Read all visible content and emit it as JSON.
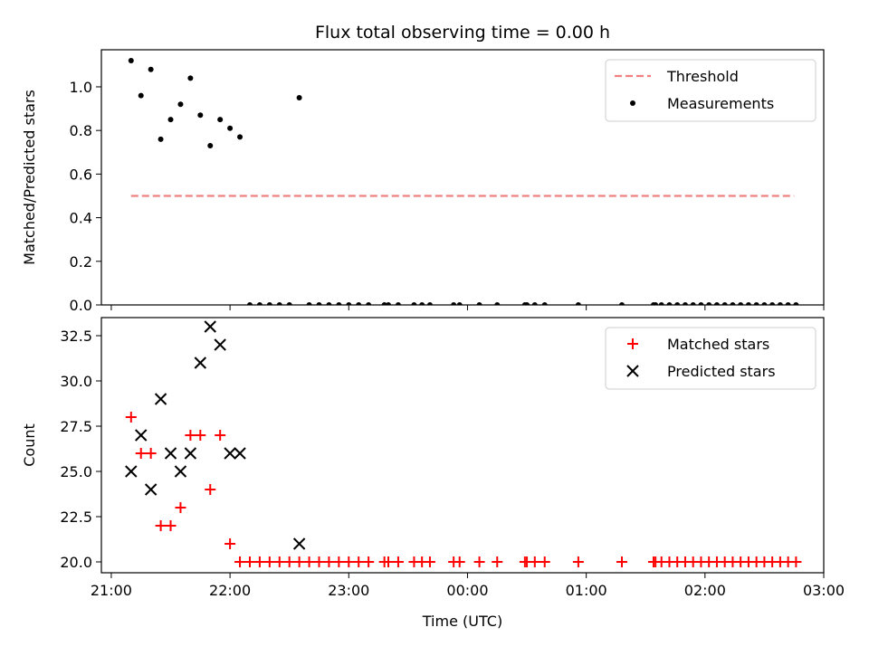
{
  "title": "Flux total observing time = 0.00 h",
  "chart_data": [
    {
      "type": "scatter",
      "ylabel": "Matched/Predicted stars",
      "ylim": [
        0,
        1.17
      ],
      "xlim": [
        "20:55",
        "03:00"
      ],
      "legend_position": "top-right",
      "threshold": {
        "name": "Threshold",
        "value": 0.5,
        "x_start": "21:10",
        "x_end": "02:45",
        "color": "#f08080"
      },
      "yticks": [
        {
          "value": 0.0,
          "label": "0.0"
        },
        {
          "value": 0.2,
          "label": "0.2"
        },
        {
          "value": 0.4,
          "label": "0.4"
        },
        {
          "value": 0.6,
          "label": "0.6"
        },
        {
          "value": 0.8,
          "label": "0.8"
        },
        {
          "value": 1.0,
          "label": "1.0"
        }
      ],
      "series": [
        {
          "name": "Measurements",
          "marker": "dot",
          "color": "#000000",
          "points": [
            [
              "21:10",
              1.12
            ],
            [
              "21:15",
              0.96
            ],
            [
              "21:20",
              1.08
            ],
            [
              "21:25",
              0.76
            ],
            [
              "21:30",
              0.85
            ],
            [
              "21:35",
              0.92
            ],
            [
              "21:40",
              1.04
            ],
            [
              "21:45",
              0.87
            ],
            [
              "21:50",
              0.73
            ],
            [
              "21:55",
              0.85
            ],
            [
              "22:00",
              0.81
            ],
            [
              "22:05",
              0.77
            ],
            [
              "22:35",
              0.95
            ],
            [
              "22:10",
              0.0
            ],
            [
              "22:15",
              0.0
            ],
            [
              "22:20",
              0.0
            ],
            [
              "22:25",
              0.0
            ],
            [
              "22:30",
              0.0
            ],
            [
              "22:40",
              0.0
            ],
            [
              "22:45",
              0.0
            ],
            [
              "22:50",
              0.0
            ],
            [
              "22:55",
              0.0
            ],
            [
              "23:00",
              0.0
            ],
            [
              "23:05",
              0.0
            ],
            [
              "23:10",
              0.0
            ],
            [
              "23:18",
              0.0
            ],
            [
              "23:20",
              0.0
            ],
            [
              "23:25",
              0.0
            ],
            [
              "23:33",
              0.0
            ],
            [
              "23:37",
              0.0
            ],
            [
              "23:41",
              0.0
            ],
            [
              "23:53",
              0.0
            ],
            [
              "23:56",
              0.0
            ],
            [
              "00:06",
              0.0
            ],
            [
              "00:15",
              0.0
            ],
            [
              "00:29",
              0.0
            ],
            [
              "00:30",
              0.0
            ],
            [
              "00:34",
              0.0
            ],
            [
              "00:39",
              0.0
            ],
            [
              "00:56",
              0.0
            ],
            [
              "01:18",
              0.0
            ],
            [
              "01:34",
              0.0
            ],
            [
              "01:35",
              0.0
            ],
            [
              "01:38",
              0.0
            ],
            [
              "01:42",
              0.0
            ],
            [
              "01:46",
              0.0
            ],
            [
              "01:50",
              0.0
            ],
            [
              "01:54",
              0.0
            ],
            [
              "01:58",
              0.0
            ],
            [
              "02:02",
              0.0
            ],
            [
              "02:06",
              0.0
            ],
            [
              "02:10",
              0.0
            ],
            [
              "02:14",
              0.0
            ],
            [
              "02:18",
              0.0
            ],
            [
              "02:22",
              0.0
            ],
            [
              "02:26",
              0.0
            ],
            [
              "02:30",
              0.0
            ],
            [
              "02:34",
              0.0
            ],
            [
              "02:38",
              0.0
            ],
            [
              "02:42",
              0.0
            ],
            [
              "02:46",
              0.0
            ]
          ]
        }
      ]
    },
    {
      "type": "scatter",
      "xlabel": "Time (UTC)",
      "ylabel": "Count",
      "ylim": [
        19.4,
        33.5
      ],
      "xlim": [
        "20:55",
        "03:00"
      ],
      "legend_position": "top-right",
      "yticks": [
        {
          "value": 20.0,
          "label": "20.0"
        },
        {
          "value": 22.5,
          "label": "22.5"
        },
        {
          "value": 25.0,
          "label": "25.0"
        },
        {
          "value": 27.5,
          "label": "27.5"
        },
        {
          "value": 30.0,
          "label": "30.0"
        },
        {
          "value": 32.5,
          "label": "32.5"
        }
      ],
      "xticks": [
        {
          "value": "21:00",
          "label": "21:00"
        },
        {
          "value": "22:00",
          "label": "22:00"
        },
        {
          "value": "23:00",
          "label": "23:00"
        },
        {
          "value": "00:00",
          "label": "00:00"
        },
        {
          "value": "01:00",
          "label": "01:00"
        },
        {
          "value": "02:00",
          "label": "02:00"
        },
        {
          "value": "03:00",
          "label": "03:00"
        }
      ],
      "series": [
        {
          "name": "Matched stars",
          "marker": "plus",
          "color": "#ff0000",
          "points": [
            [
              "21:10",
              28
            ],
            [
              "21:15",
              26
            ],
            [
              "21:20",
              26
            ],
            [
              "21:25",
              22
            ],
            [
              "21:30",
              22
            ],
            [
              "21:35",
              23
            ],
            [
              "21:40",
              27
            ],
            [
              "21:45",
              27
            ],
            [
              "21:50",
              24
            ],
            [
              "21:55",
              27
            ],
            [
              "22:00",
              21
            ],
            [
              "22:05",
              20
            ],
            [
              "22:10",
              20
            ],
            [
              "22:15",
              20
            ],
            [
              "22:20",
              20
            ],
            [
              "22:25",
              20
            ],
            [
              "22:30",
              20
            ],
            [
              "22:35",
              20
            ],
            [
              "22:40",
              20
            ],
            [
              "22:45",
              20
            ],
            [
              "22:50",
              20
            ],
            [
              "22:55",
              20
            ],
            [
              "23:00",
              20
            ],
            [
              "23:05",
              20
            ],
            [
              "23:10",
              20
            ],
            [
              "23:18",
              20
            ],
            [
              "23:20",
              20
            ],
            [
              "23:25",
              20
            ],
            [
              "23:33",
              20
            ],
            [
              "23:37",
              20
            ],
            [
              "23:41",
              20
            ],
            [
              "23:53",
              20
            ],
            [
              "23:56",
              20
            ],
            [
              "00:06",
              20
            ],
            [
              "00:15",
              20
            ],
            [
              "00:29",
              20
            ],
            [
              "00:30",
              20
            ],
            [
              "00:34",
              20
            ],
            [
              "00:39",
              20
            ],
            [
              "00:56",
              20
            ],
            [
              "01:18",
              20
            ],
            [
              "01:34",
              20
            ],
            [
              "01:35",
              20
            ],
            [
              "01:38",
              20
            ],
            [
              "01:42",
              20
            ],
            [
              "01:46",
              20
            ],
            [
              "01:50",
              20
            ],
            [
              "01:54",
              20
            ],
            [
              "01:58",
              20
            ],
            [
              "02:02",
              20
            ],
            [
              "02:06",
              20
            ],
            [
              "02:10",
              20
            ],
            [
              "02:14",
              20
            ],
            [
              "02:18",
              20
            ],
            [
              "02:22",
              20
            ],
            [
              "02:26",
              20
            ],
            [
              "02:30",
              20
            ],
            [
              "02:34",
              20
            ],
            [
              "02:38",
              20
            ],
            [
              "02:42",
              20
            ],
            [
              "02:46",
              20
            ]
          ]
        },
        {
          "name": "Predicted stars",
          "marker": "x",
          "color": "#000000",
          "points": [
            [
              "21:10",
              25
            ],
            [
              "21:15",
              27
            ],
            [
              "21:20",
              24
            ],
            [
              "21:25",
              29
            ],
            [
              "21:30",
              26
            ],
            [
              "21:35",
              25
            ],
            [
              "21:40",
              26
            ],
            [
              "21:45",
              31
            ],
            [
              "21:50",
              33
            ],
            [
              "21:55",
              32
            ],
            [
              "22:00",
              26
            ],
            [
              "22:05",
              26
            ],
            [
              "22:35",
              21
            ]
          ]
        }
      ]
    }
  ]
}
